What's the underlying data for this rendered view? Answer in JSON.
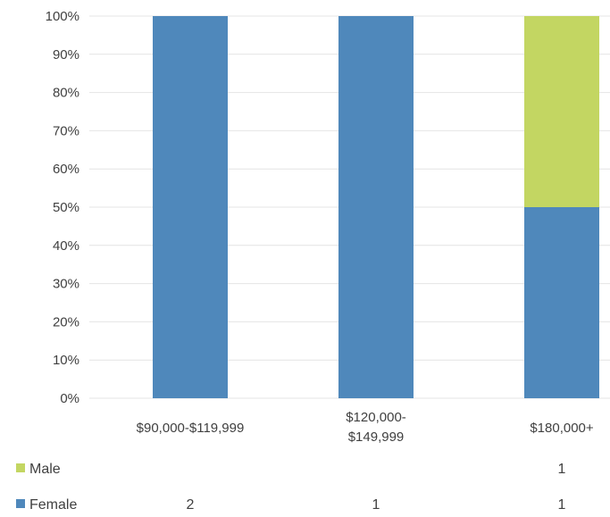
{
  "chart_data": {
    "type": "bar",
    "stacked": true,
    "percent_stacked": true,
    "categories": [
      [
        "$90,000-$119,999"
      ],
      [
        "$120,000-",
        "$149,999"
      ],
      [
        "$180,000+"
      ]
    ],
    "series": [
      {
        "name": "Female",
        "color": "#4f88bb",
        "values": [
          2,
          1,
          1
        ]
      },
      {
        "name": "Male",
        "color": "#c3d662",
        "values": [
          null,
          null,
          1
        ]
      }
    ],
    "y_ticks": [
      "0%",
      "10%",
      "20%",
      "30%",
      "40%",
      "50%",
      "60%",
      "70%",
      "80%",
      "90%",
      "100%"
    ],
    "ylim": [
      0,
      100
    ],
    "grid": true,
    "legend": "bottom data table"
  }
}
